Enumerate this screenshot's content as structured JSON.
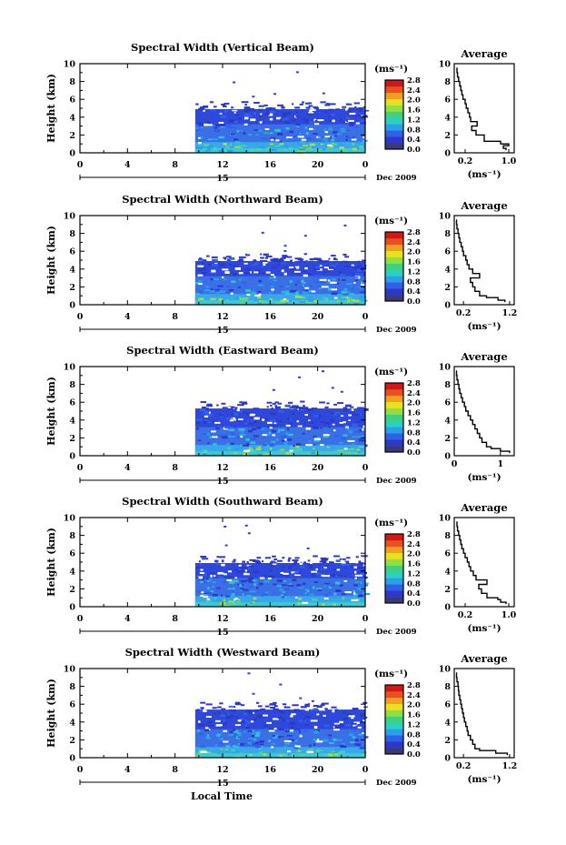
{
  "figure": {
    "xlabel": "Local Time",
    "x_ticks": [
      "0",
      "4",
      "8",
      "12",
      "16",
      "20",
      "0"
    ],
    "y_ticks": [
      "0",
      "2",
      "4",
      "6",
      "8",
      "10"
    ],
    "ylabel": "Height (km)",
    "day_label": "15",
    "date_label": "Dec 2009",
    "unit_label": "(ms⁻¹)",
    "avg_title": "Average",
    "colorbar": {
      "ticks": [
        "0.0",
        "0.4",
        "0.8",
        "1.2",
        "1.6",
        "2.0",
        "2.4",
        "2.8"
      ],
      "colors": [
        "#3a3a7a",
        "#2b38c8",
        "#3060e8",
        "#2aa0e8",
        "#2ad0c0",
        "#40d080",
        "#90e040",
        "#e8e020",
        "#f0a020",
        "#e85020",
        "#d01818"
      ]
    }
  },
  "chart_data": [
    {
      "type": "heatmap",
      "title": "Spectral Width (Vertical Beam)",
      "xlabel": "Local Time",
      "ylabel": "Height (km)",
      "xlim": [
        0,
        24
      ],
      "ylim": [
        0,
        10
      ],
      "data_start_hour": 9.7,
      "top_of_data_km": 5.5,
      "avg_profile": {
        "title": "Average",
        "xlabel": "(ms⁻¹)",
        "x_ticks": [
          "0.2",
          "1.0"
        ],
        "xlim": [
          0,
          1.1
        ],
        "height_km": [
          0.3,
          0.5,
          0.8,
          1.0,
          1.3,
          2.0,
          2.5,
          3.0,
          3.5,
          4.0,
          4.5,
          5.0,
          5.5,
          6.0,
          6.5,
          7.0,
          7.5,
          8.0,
          8.5,
          9.0,
          9.5
        ],
        "width": [
          0.95,
          0.9,
          1.0,
          0.85,
          0.55,
          0.4,
          0.32,
          0.42,
          0.3,
          0.28,
          0.25,
          0.22,
          0.2,
          0.16,
          0.14,
          0.12,
          0.1,
          0.08,
          0.06,
          0.05,
          0.04
        ]
      }
    },
    {
      "type": "heatmap",
      "title": "Spectral Width (Northward Beam)",
      "xlabel": "Local Time",
      "ylabel": "Height (km)",
      "xlim": [
        0,
        24
      ],
      "ylim": [
        0,
        10
      ],
      "data_start_hour": 9.7,
      "top_of_data_km": 5.5,
      "avg_profile": {
        "title": "Average",
        "xlabel": "(ms⁻¹)",
        "x_ticks": [
          "0.2",
          "1.2"
        ],
        "xlim": [
          0,
          1.3
        ],
        "height_km": [
          0.3,
          0.5,
          0.8,
          1.0,
          1.5,
          2.0,
          2.5,
          3.0,
          3.5,
          4.0,
          4.5,
          5.0,
          5.5,
          6.0,
          6.5,
          7.0,
          7.5,
          8.0,
          8.5,
          9.0,
          9.5
        ],
        "width": [
          1.1,
          0.95,
          0.7,
          0.55,
          0.45,
          0.4,
          0.35,
          0.55,
          0.4,
          0.32,
          0.28,
          0.25,
          0.2,
          0.18,
          0.15,
          0.12,
          0.1,
          0.08,
          0.06,
          0.05,
          0.04
        ]
      }
    },
    {
      "type": "heatmap",
      "title": "Spectral Width (Eastward Beam)",
      "xlabel": "Local Time",
      "ylabel": "Height (km)",
      "xlim": [
        0,
        24
      ],
      "ylim": [
        0,
        10
      ],
      "data_start_hour": 9.7,
      "top_of_data_km": 5.9,
      "avg_profile": {
        "title": "Average",
        "xlabel": "(ms⁻¹)",
        "x_ticks": [
          "0",
          "1"
        ],
        "xlim": [
          0,
          1.3
        ],
        "height_km": [
          0.3,
          0.5,
          0.8,
          1.0,
          1.5,
          2.0,
          2.5,
          3.0,
          3.5,
          4.0,
          4.5,
          5.0,
          5.5,
          6.0,
          6.5,
          7.0,
          7.5,
          8.0,
          8.5,
          9.0,
          9.5
        ],
        "width": [
          1.2,
          1.0,
          0.8,
          0.7,
          0.6,
          0.55,
          0.5,
          0.45,
          0.4,
          0.35,
          0.3,
          0.25,
          0.22,
          0.18,
          0.15,
          0.12,
          0.1,
          0.08,
          0.06,
          0.05,
          0.04
        ]
      }
    },
    {
      "type": "heatmap",
      "title": "Spectral Width (Southward Beam)",
      "xlabel": "Local Time",
      "ylabel": "Height (km)",
      "xlim": [
        0,
        24
      ],
      "ylim": [
        0,
        10
      ],
      "data_start_hour": 9.7,
      "top_of_data_km": 5.5,
      "avg_profile": {
        "title": "Average",
        "xlabel": "(ms⁻¹)",
        "x_ticks": [
          "0.2",
          "1.0"
        ],
        "xlim": [
          0,
          1.1
        ],
        "height_km": [
          0.3,
          0.5,
          0.8,
          1.0,
          1.5,
          2.0,
          2.5,
          3.0,
          3.5,
          4.0,
          4.5,
          5.0,
          5.5,
          6.0,
          6.5,
          7.0,
          7.5,
          8.0,
          8.5,
          9.0,
          9.5
        ],
        "width": [
          0.95,
          0.85,
          0.8,
          0.6,
          0.5,
          0.45,
          0.6,
          0.4,
          0.35,
          0.3,
          0.27,
          0.24,
          0.2,
          0.17,
          0.14,
          0.12,
          0.1,
          0.08,
          0.06,
          0.05,
          0.04
        ]
      }
    },
    {
      "type": "heatmap",
      "title": "Spectral Width (Westward Beam)",
      "xlabel": "Local Time",
      "ylabel": "Height (km)",
      "xlim": [
        0,
        24
      ],
      "ylim": [
        0,
        10
      ],
      "data_start_hour": 9.7,
      "top_of_data_km": 6.0,
      "avg_profile": {
        "title": "Average",
        "xlabel": "(ms⁻¹)",
        "x_ticks": [
          "0.2",
          "1.2"
        ],
        "xlim": [
          0,
          1.3
        ],
        "height_km": [
          0.3,
          0.5,
          0.8,
          1.0,
          1.5,
          2.0,
          2.5,
          3.0,
          3.5,
          4.0,
          4.5,
          5.0,
          5.5,
          6.0,
          6.5,
          7.0,
          7.5,
          8.0,
          8.5,
          9.0,
          9.5
        ],
        "width": [
          1.15,
          0.9,
          0.55,
          0.45,
          0.4,
          0.35,
          0.3,
          0.28,
          0.25,
          0.22,
          0.2,
          0.18,
          0.16,
          0.14,
          0.12,
          0.1,
          0.09,
          0.08,
          0.06,
          0.05,
          0.04
        ]
      }
    }
  ]
}
